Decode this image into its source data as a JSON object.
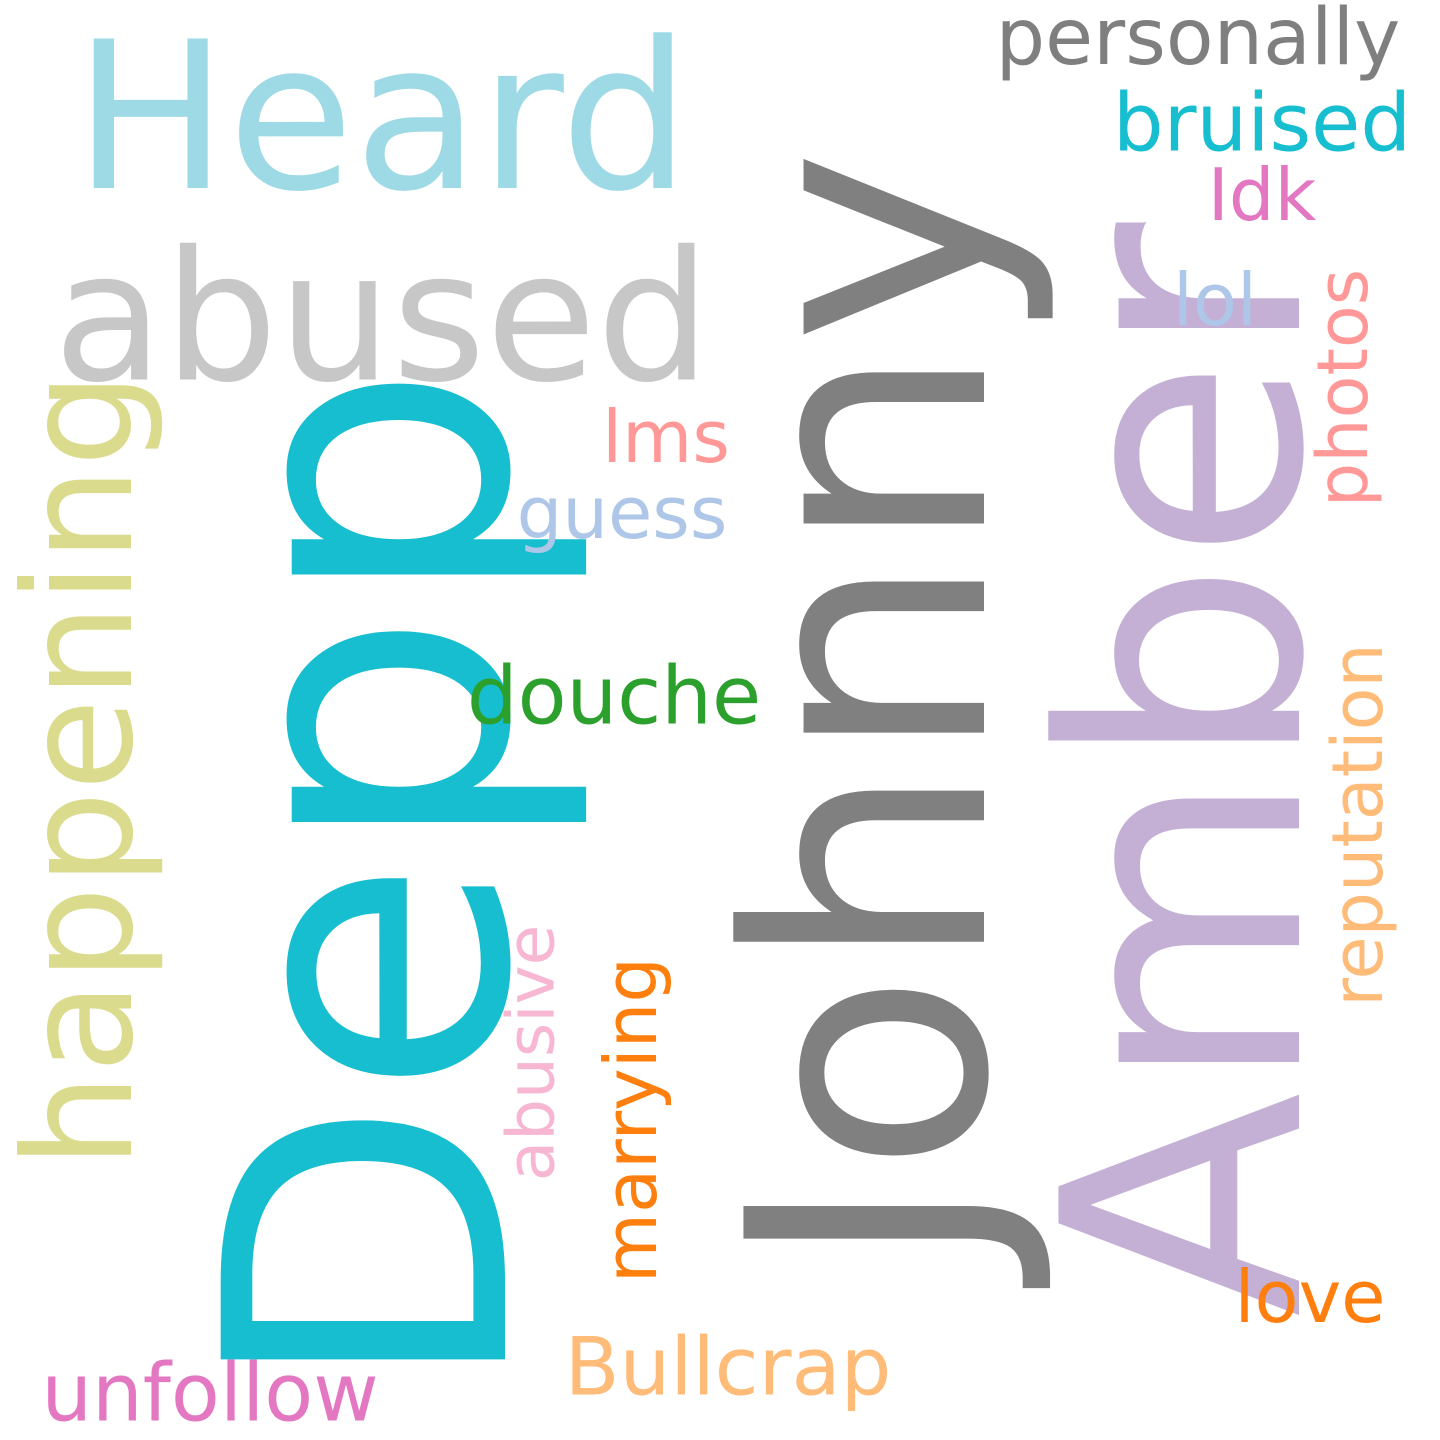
{
  "words": {
    "johnny": {
      "text": "Johnny",
      "color": "#808080"
    },
    "depp": {
      "text": "Depp",
      "color": "#17becf"
    },
    "amber": {
      "text": "Amber",
      "color": "#c5b0d5"
    },
    "heard": {
      "text": "Heard",
      "color": "#9edae5"
    },
    "abused": {
      "text": "abused",
      "color": "#c7c7c7"
    },
    "happening": {
      "text": "happening",
      "color": "#dbdb8d"
    },
    "personally": {
      "text": "personally",
      "color": "#7f7f7f"
    },
    "bruised": {
      "text": "bruised",
      "color": "#17becf"
    },
    "idk": {
      "text": "Idk",
      "color": "#e377c2"
    },
    "lol": {
      "text": "lol",
      "color": "#aec7e8"
    },
    "photos": {
      "text": "photos",
      "color": "#ff9896"
    },
    "lms": {
      "text": "lms",
      "color": "#ff9896"
    },
    "guess": {
      "text": "guess",
      "color": "#aec7e8"
    },
    "douche": {
      "text": "douche",
      "color": "#2ca02c"
    },
    "reputation": {
      "text": "reputation",
      "color": "#ffbb78"
    },
    "abusive": {
      "text": "abusive",
      "color": "#f7b6d2"
    },
    "marrying": {
      "text": "marrying",
      "color": "#ff7f0e"
    },
    "love": {
      "text": "love",
      "color": "#ff7f0e"
    },
    "bullcrap": {
      "text": "Bullcrap",
      "color": "#ffbb78"
    },
    "unfollow": {
      "text": "unfollow",
      "color": "#e377c2"
    }
  }
}
